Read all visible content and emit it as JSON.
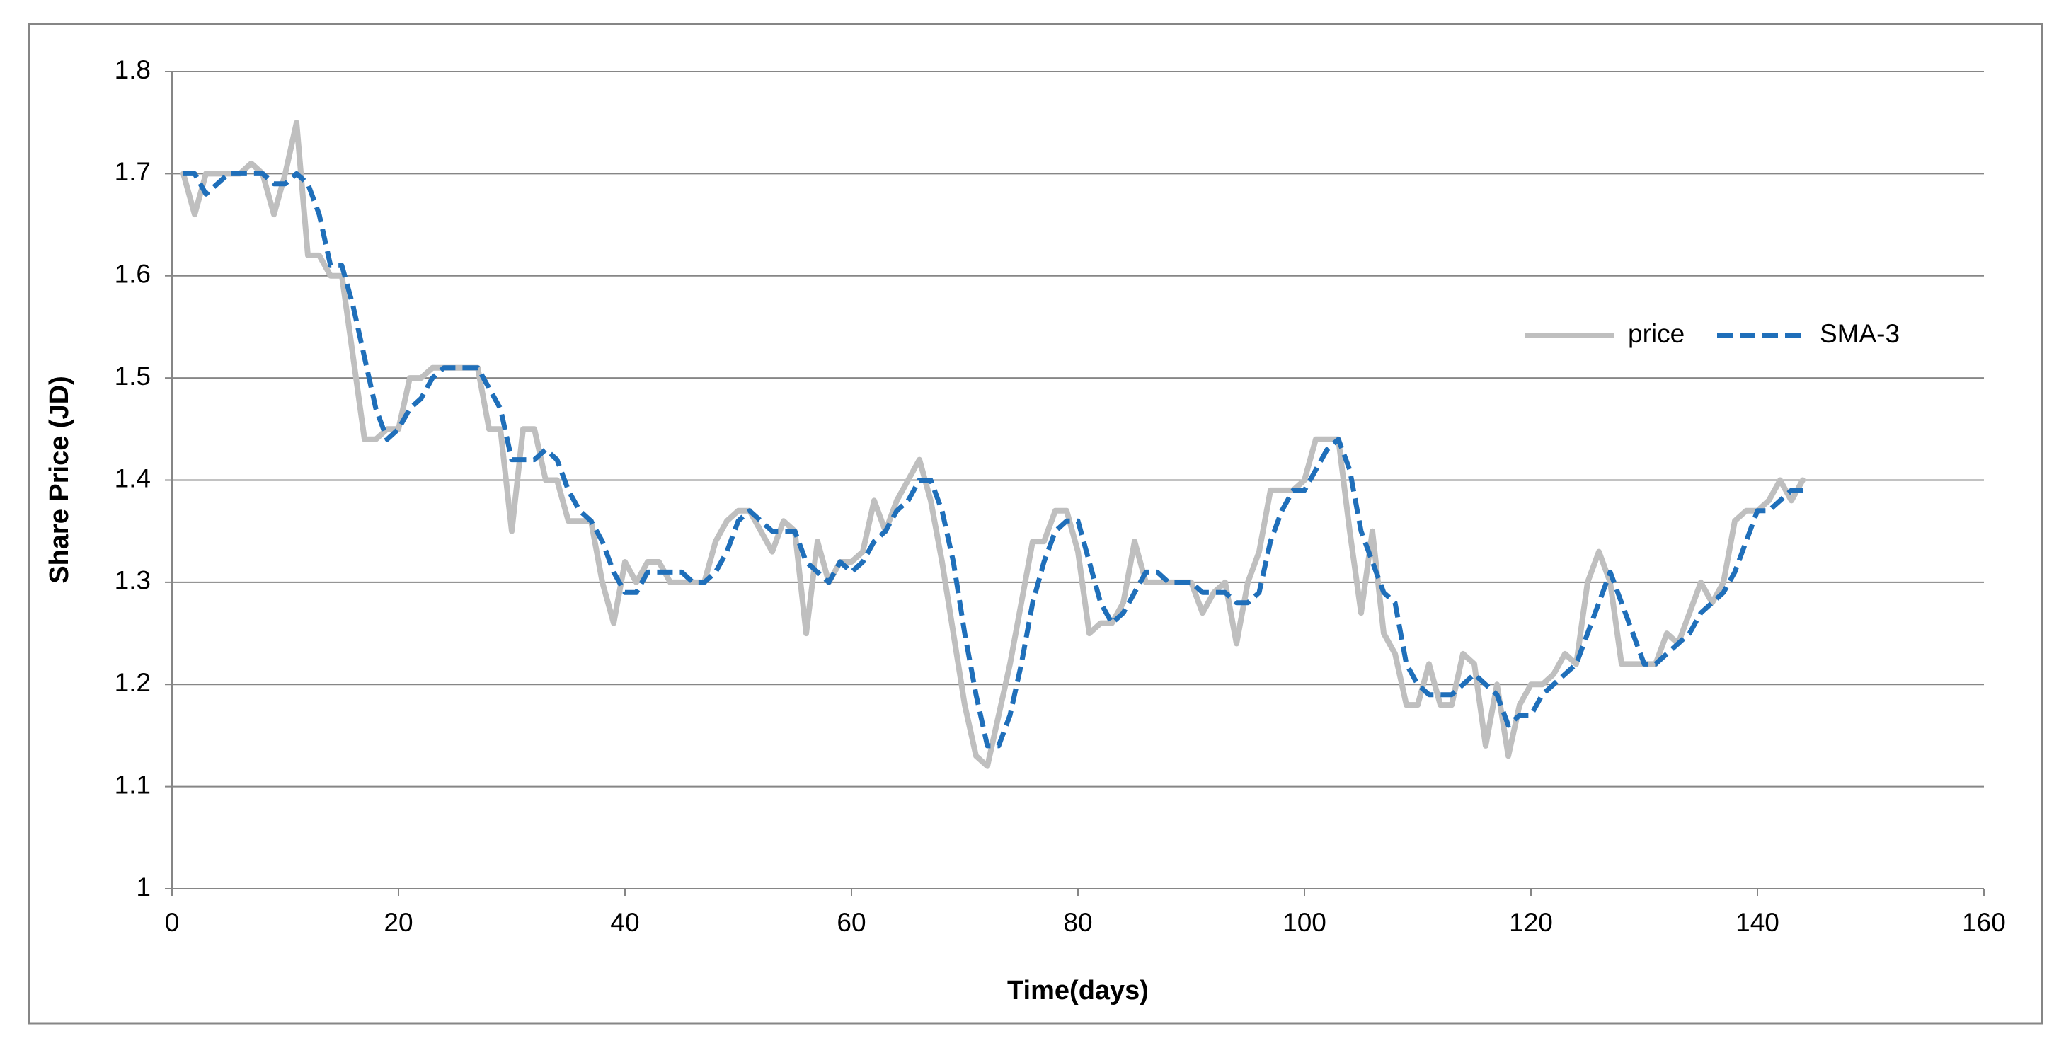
{
  "chart_data": {
    "type": "line",
    "x_label": "Time(days)",
    "y_label": "Share Price (JD)",
    "x": [
      1,
      2,
      3,
      4,
      5,
      6,
      7,
      8,
      9,
      10,
      11,
      12,
      13,
      14,
      15,
      16,
      17,
      18,
      19,
      20,
      21,
      22,
      23,
      24,
      25,
      26,
      27,
      28,
      29,
      30,
      31,
      32,
      33,
      34,
      35,
      36,
      37,
      38,
      39,
      40,
      41,
      42,
      43,
      44,
      45,
      46,
      47,
      48,
      49,
      50,
      51,
      52,
      53,
      54,
      55,
      56,
      57,
      58,
      59,
      60,
      61,
      62,
      63,
      64,
      65,
      66,
      67,
      68,
      69,
      70,
      71,
      72,
      73,
      74,
      75,
      76,
      77,
      78,
      79,
      80,
      81,
      82,
      83,
      84,
      85,
      86,
      87,
      88,
      89,
      90,
      91,
      92,
      93,
      94,
      95,
      96,
      97,
      98,
      99,
      100,
      101,
      102,
      103,
      104,
      105,
      106,
      107,
      108,
      109,
      110,
      111,
      112,
      113,
      114,
      115,
      116,
      117,
      118,
      119,
      120,
      121,
      122,
      123,
      124,
      125,
      126,
      127,
      128,
      129,
      130,
      131,
      132,
      133,
      134,
      135,
      136,
      137,
      138,
      139,
      140,
      141,
      142,
      143,
      144
    ],
    "series": [
      {
        "name": "price",
        "color": "#bfbfbf",
        "line_style": "solid",
        "values": [
          1.7,
          1.66,
          1.7,
          1.7,
          1.7,
          1.7,
          1.71,
          1.7,
          1.66,
          1.7,
          1.75,
          1.62,
          1.62,
          1.6,
          1.6,
          1.52,
          1.44,
          1.44,
          1.45,
          1.45,
          1.5,
          1.5,
          1.51,
          1.51,
          1.51,
          1.51,
          1.51,
          1.45,
          1.45,
          1.35,
          1.45,
          1.45,
          1.4,
          1.4,
          1.36,
          1.36,
          1.36,
          1.3,
          1.26,
          1.32,
          1.3,
          1.32,
          1.32,
          1.3,
          1.3,
          1.3,
          1.3,
          1.34,
          1.36,
          1.37,
          1.37,
          1.35,
          1.33,
          1.36,
          1.35,
          1.25,
          1.34,
          1.3,
          1.32,
          1.32,
          1.33,
          1.38,
          1.35,
          1.38,
          1.4,
          1.42,
          1.38,
          1.32,
          1.25,
          1.18,
          1.13,
          1.12,
          1.17,
          1.22,
          1.28,
          1.34,
          1.34,
          1.37,
          1.37,
          1.33,
          1.25,
          1.26,
          1.26,
          1.28,
          1.34,
          1.3,
          1.3,
          1.3,
          1.3,
          1.3,
          1.27,
          1.29,
          1.3,
          1.24,
          1.3,
          1.33,
          1.39,
          1.39,
          1.39,
          1.4,
          1.44,
          1.44,
          1.44,
          1.35,
          1.27,
          1.35,
          1.25,
          1.23,
          1.18,
          1.18,
          1.22,
          1.18,
          1.18,
          1.23,
          1.22,
          1.14,
          1.2,
          1.13,
          1.18,
          1.2,
          1.2,
          1.21,
          1.23,
          1.22,
          1.3,
          1.33,
          1.3,
          1.22,
          1.22,
          1.22,
          1.22,
          1.25,
          1.24,
          1.27,
          1.3,
          1.28,
          1.3,
          1.36,
          1.37,
          1.37,
          1.38,
          1.4,
          1.38,
          1.4
        ]
      },
      {
        "name": "SMA-3",
        "color": "#1f6fba",
        "line_style": "dashed",
        "values": [
          1.7,
          1.7,
          1.68,
          1.69,
          1.7,
          1.7,
          1.7,
          1.7,
          1.69,
          1.69,
          1.7,
          1.69,
          1.66,
          1.61,
          1.61,
          1.57,
          1.52,
          1.47,
          1.44,
          1.45,
          1.47,
          1.48,
          1.5,
          1.51,
          1.51,
          1.51,
          1.51,
          1.49,
          1.47,
          1.42,
          1.42,
          1.42,
          1.43,
          1.42,
          1.39,
          1.37,
          1.36,
          1.34,
          1.31,
          1.29,
          1.29,
          1.31,
          1.31,
          1.31,
          1.31,
          1.3,
          1.3,
          1.31,
          1.33,
          1.36,
          1.37,
          1.36,
          1.35,
          1.35,
          1.35,
          1.32,
          1.31,
          1.3,
          1.32,
          1.31,
          1.32,
          1.34,
          1.35,
          1.37,
          1.38,
          1.4,
          1.4,
          1.37,
          1.32,
          1.25,
          1.19,
          1.14,
          1.14,
          1.17,
          1.22,
          1.28,
          1.32,
          1.35,
          1.36,
          1.36,
          1.32,
          1.28,
          1.26,
          1.27,
          1.29,
          1.31,
          1.31,
          1.3,
          1.3,
          1.3,
          1.29,
          1.29,
          1.29,
          1.28,
          1.28,
          1.29,
          1.34,
          1.37,
          1.39,
          1.39,
          1.41,
          1.43,
          1.44,
          1.41,
          1.35,
          1.32,
          1.29,
          1.28,
          1.22,
          1.2,
          1.19,
          1.19,
          1.19,
          1.2,
          1.21,
          1.2,
          1.19,
          1.16,
          1.17,
          1.17,
          1.19,
          1.2,
          1.21,
          1.22,
          1.25,
          1.28,
          1.31,
          1.28,
          1.25,
          1.22,
          1.22,
          1.23,
          1.24,
          1.25,
          1.27,
          1.28,
          1.29,
          1.31,
          1.34,
          1.37,
          1.37,
          1.38,
          1.39,
          1.39
        ]
      }
    ],
    "xlim": [
      0,
      160
    ],
    "xticks": [
      0,
      20,
      40,
      60,
      80,
      100,
      120,
      140,
      160
    ],
    "ylim": [
      1,
      1.8
    ],
    "yticks": [
      1,
      1.1,
      1.2,
      1.3,
      1.4,
      1.5,
      1.6,
      1.7,
      1.8
    ],
    "grid": true,
    "legend": "right"
  }
}
